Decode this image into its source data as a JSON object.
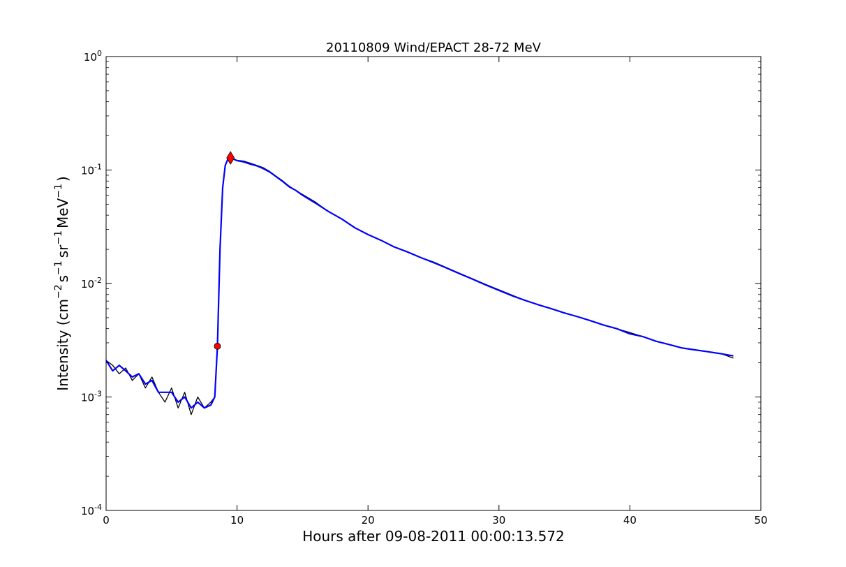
{
  "chart_data": {
    "type": "line",
    "title": "20110809 Wind/EPACT 28-72 MeV",
    "xlabel": "Hours after 09-08-2011 00:00:13.572",
    "ylabel": {
      "prefix": "Intensity (cm",
      "cm_exp": "−2",
      "s": "s",
      "s_exp": "−1",
      "sr": "sr",
      "sr_exp": "−1",
      "mev": "MeV",
      "mev_exp": "−1",
      "suffix": ")"
    },
    "xlim": [
      0,
      50
    ],
    "ylim": [
      0.0001,
      1
    ],
    "yscale": "log",
    "grid": false,
    "x_ticks": [
      {
        "value": 0,
        "label": "0"
      },
      {
        "value": 10,
        "label": "10"
      },
      {
        "value": 20,
        "label": "20"
      },
      {
        "value": 30,
        "label": "30"
      },
      {
        "value": 40,
        "label": "40"
      },
      {
        "value": 50,
        "label": "50"
      }
    ],
    "y_ticks": [
      {
        "value": 0.0001,
        "base": "10",
        "exp": "-4"
      },
      {
        "value": 0.001,
        "base": "10",
        "exp": "-3"
      },
      {
        "value": 0.01,
        "base": "10",
        "exp": "-2"
      },
      {
        "value": 0.1,
        "base": "10",
        "exp": "-1"
      },
      {
        "value": 1,
        "base": "10",
        "exp": "0"
      }
    ],
    "series": [
      {
        "kind": "raw",
        "color": "#000000",
        "x": [
          0,
          0.5,
          1,
          1.5,
          2,
          2.5,
          3,
          3.5,
          4,
          4.5,
          5,
          5.5,
          6,
          6.5,
          7,
          7.5,
          8,
          8.3,
          8.5,
          8.7,
          8.9,
          9.1,
          9.3,
          9.5,
          10,
          10.5,
          11,
          11.5,
          12,
          12.5,
          13,
          13.5,
          14,
          14.5,
          15,
          16,
          17,
          18,
          19,
          20,
          21,
          22,
          23,
          24,
          25,
          26,
          27,
          28,
          29,
          30,
          31,
          32,
          33,
          34,
          35,
          36,
          37,
          38,
          39,
          40,
          41,
          42,
          43,
          44,
          45,
          46,
          47,
          47.9
        ],
        "y": [
          0.0021,
          0.0019,
          0.0016,
          0.0018,
          0.0014,
          0.0016,
          0.0012,
          0.0015,
          0.0011,
          0.0009,
          0.0012,
          0.0008,
          0.0011,
          0.0007,
          0.001,
          0.0008,
          0.0009,
          0.001,
          0.0028,
          0.02,
          0.07,
          0.11,
          0.125,
          0.128,
          0.122,
          0.12,
          0.115,
          0.11,
          0.105,
          0.097,
          0.088,
          0.08,
          0.072,
          0.066,
          0.061,
          0.052,
          0.043,
          0.037,
          0.031,
          0.027,
          0.024,
          0.021,
          0.019,
          0.017,
          0.0155,
          0.0138,
          0.0123,
          0.011,
          0.0098,
          0.0088,
          0.0079,
          0.0071,
          0.0065,
          0.006,
          0.0055,
          0.0051,
          0.0047,
          0.0043,
          0.004,
          0.0037,
          0.0034,
          0.0031,
          0.0029,
          0.0027,
          0.0026,
          0.0025,
          0.0024,
          0.0022
        ]
      },
      {
        "kind": "smoothed",
        "color": "#0000ff",
        "x": [
          0,
          0.5,
          1,
          1.5,
          2,
          2.5,
          3,
          3.5,
          4,
          4.5,
          5,
          5.5,
          6,
          6.5,
          7,
          7.5,
          8,
          8.3,
          8.5,
          8.7,
          8.9,
          9.1,
          9.3,
          9.5,
          10,
          10.5,
          11,
          11.5,
          12,
          12.5,
          13,
          13.5,
          14,
          14.5,
          15,
          16,
          17,
          18,
          19,
          20,
          21,
          22,
          23,
          24,
          25,
          26,
          27,
          28,
          29,
          30,
          31,
          32,
          33,
          34,
          35,
          36,
          37,
          38,
          39,
          40,
          41,
          42,
          43,
          44,
          45,
          46,
          47,
          47.9
        ],
        "y": [
          0.0021,
          0.0017,
          0.0019,
          0.0017,
          0.0015,
          0.0016,
          0.0013,
          0.0014,
          0.0011,
          0.0011,
          0.0011,
          0.0009,
          0.001,
          0.0008,
          0.0009,
          0.0008,
          0.00085,
          0.001,
          0.0028,
          0.02,
          0.07,
          0.11,
          0.125,
          0.128,
          0.121,
          0.118,
          0.113,
          0.109,
          0.103,
          0.096,
          0.087,
          0.079,
          0.071,
          0.066,
          0.06,
          0.051,
          0.043,
          0.037,
          0.031,
          0.027,
          0.024,
          0.021,
          0.019,
          0.017,
          0.0153,
          0.0137,
          0.0122,
          0.0109,
          0.0097,
          0.0087,
          0.0078,
          0.0071,
          0.0065,
          0.006,
          0.0055,
          0.0051,
          0.0047,
          0.0043,
          0.004,
          0.0036,
          0.0034,
          0.0031,
          0.0029,
          0.0027,
          0.0026,
          0.0025,
          0.0024,
          0.0023
        ]
      }
    ],
    "markers": [
      {
        "shape": "circle",
        "color": "#ff0000",
        "x": 8.5,
        "y": 0.0028
      },
      {
        "shape": "diamond",
        "color": "#ff0000",
        "x": 9.5,
        "y": 0.128
      }
    ]
  }
}
